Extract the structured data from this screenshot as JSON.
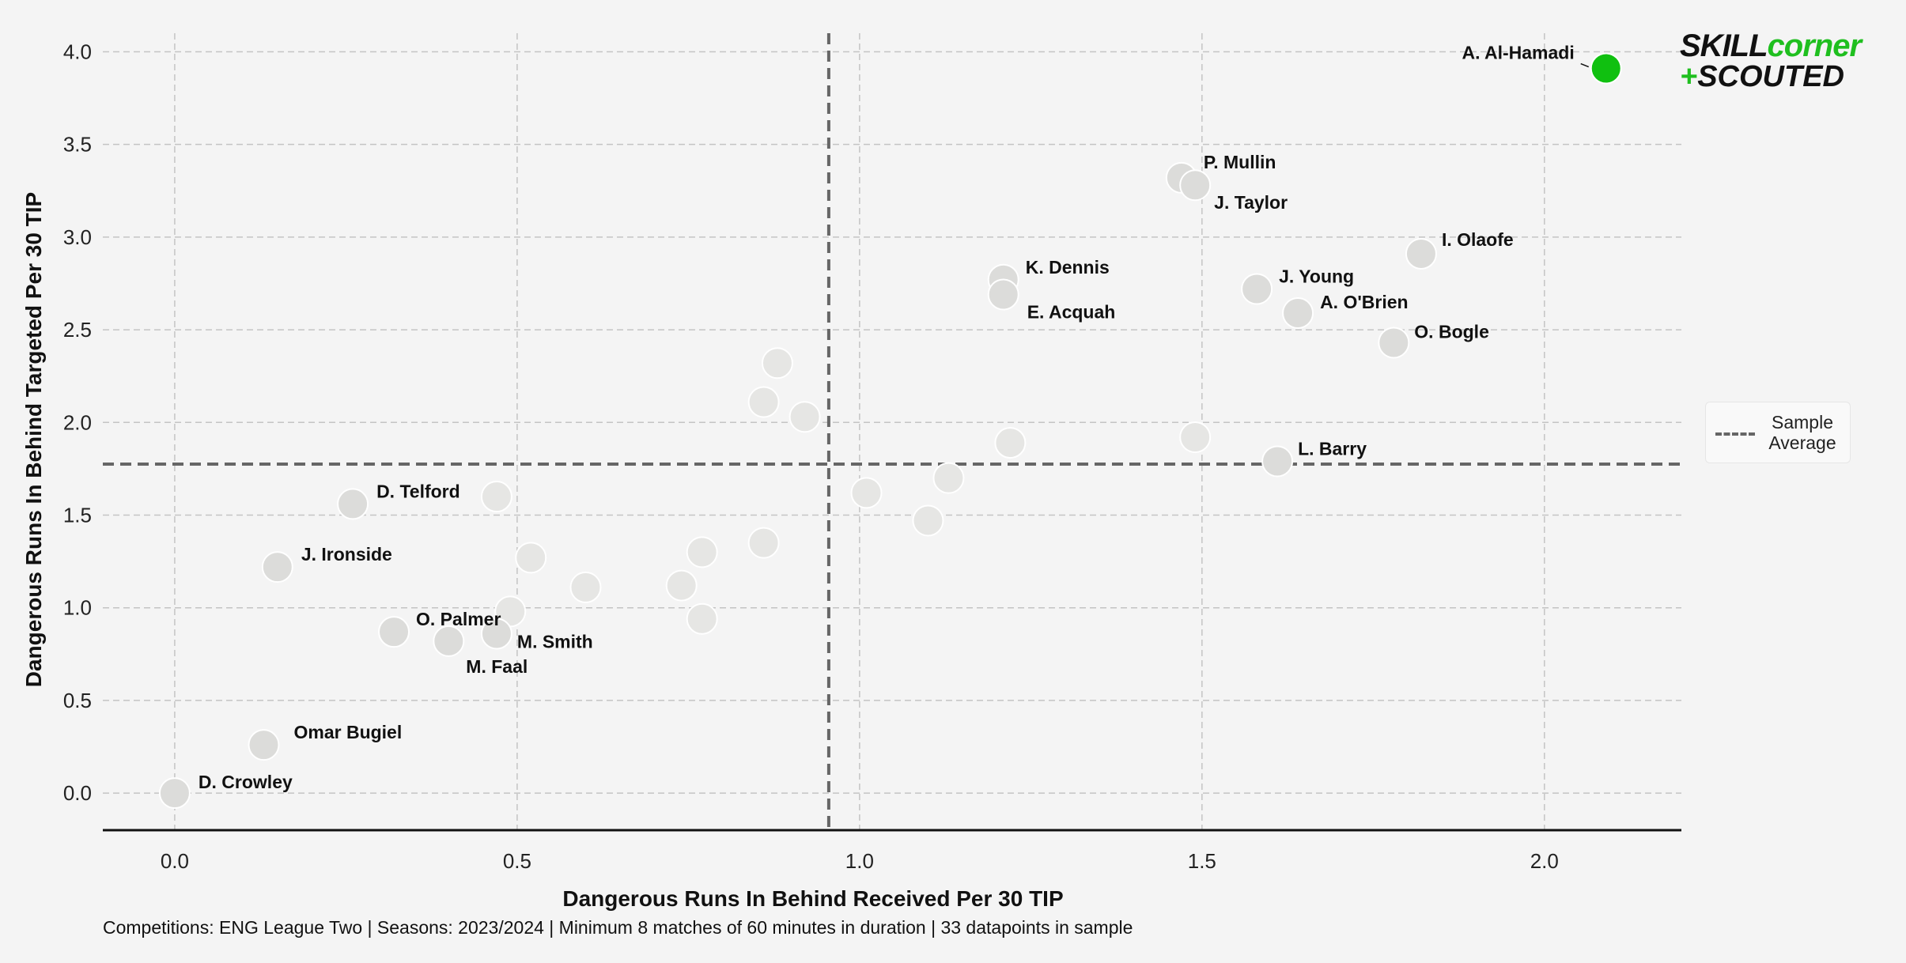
{
  "footnote": "Competitions: ENG League Two | Seasons: 2023/2024 | Minimum 8 matches of 60 minutes in duration | 33 datapoints in sample",
  "logo": {
    "line1_a": "SKILL",
    "line1_b": "corner",
    "line2_plus": "+",
    "line2": "SCOUTED"
  },
  "legend": {
    "label": "Sample Average"
  },
  "colors": {
    "background": "#f4f4f4",
    "point": "#dcdcda",
    "point_faded": "#e6e6e4",
    "highlight": "#10c010",
    "grid": "#c4c4c4",
    "average_line": "#666666"
  },
  "chart_data": {
    "type": "scatter",
    "xlabel": "Dangerous Runs In Behind Received Per 30 TIP",
    "ylabel": "Dangerous Runs In Behind Targeted Per 30 TIP",
    "xlim": [
      -0.105,
      2.2
    ],
    "ylim": [
      -0.2,
      4.1
    ],
    "xticks": [
      "0.0",
      "0.5",
      "1.0",
      "1.5",
      "2.0"
    ],
    "yticks": [
      "0.0",
      "0.5",
      "1.0",
      "1.5",
      "2.0",
      "2.5",
      "3.0",
      "3.5",
      "4.0"
    ],
    "grid": true,
    "legend_position": "right",
    "average": {
      "x": 0.955,
      "y": 1.775
    },
    "highlighted": [
      {
        "name": "A. Al-Hamadi",
        "x": 2.09,
        "y": 3.91
      }
    ],
    "labeled": [
      {
        "name": "P. Mullin",
        "x": 1.47,
        "y": 3.32
      },
      {
        "name": "J. Taylor",
        "x": 1.49,
        "y": 3.28
      },
      {
        "name": "I. Olaofe",
        "x": 1.82,
        "y": 2.91
      },
      {
        "name": "K. Dennis",
        "x": 1.21,
        "y": 2.77
      },
      {
        "name": "E. Acquah",
        "x": 1.21,
        "y": 2.69
      },
      {
        "name": "J. Young",
        "x": 1.58,
        "y": 2.72
      },
      {
        "name": "A. O'Brien",
        "x": 1.64,
        "y": 2.59
      },
      {
        "name": "O. Bogle",
        "x": 1.78,
        "y": 2.43
      },
      {
        "name": "L. Barry",
        "x": 1.61,
        "y": 1.79
      },
      {
        "name": "D. Telford",
        "x": 0.26,
        "y": 1.56
      },
      {
        "name": "J. Ironside",
        "x": 0.15,
        "y": 1.22
      },
      {
        "name": "O. Palmer",
        "x": 0.32,
        "y": 0.87
      },
      {
        "name": "M. Smith",
        "x": 0.47,
        "y": 0.86
      },
      {
        "name": "M. Faal",
        "x": 0.4,
        "y": 0.82
      },
      {
        "name": "Omar Bugiel",
        "x": 0.13,
        "y": 0.26
      },
      {
        "name": "D. Crowley",
        "x": 0.0,
        "y": 0.0
      }
    ],
    "unlabeled": [
      {
        "x": 0.88,
        "y": 2.32
      },
      {
        "x": 0.86,
        "y": 2.11
      },
      {
        "x": 0.92,
        "y": 2.03
      },
      {
        "x": 1.22,
        "y": 1.89
      },
      {
        "x": 1.49,
        "y": 1.92
      },
      {
        "x": 0.47,
        "y": 1.6
      },
      {
        "x": 1.01,
        "y": 1.62
      },
      {
        "x": 1.13,
        "y": 1.7
      },
      {
        "x": 1.1,
        "y": 1.47
      },
      {
        "x": 0.52,
        "y": 1.27
      },
      {
        "x": 0.6,
        "y": 1.11
      },
      {
        "x": 0.77,
        "y": 1.3
      },
      {
        "x": 0.86,
        "y": 1.35
      },
      {
        "x": 0.74,
        "y": 1.12
      },
      {
        "x": 0.77,
        "y": 0.94
      },
      {
        "x": 0.49,
        "y": 0.98
      }
    ]
  }
}
